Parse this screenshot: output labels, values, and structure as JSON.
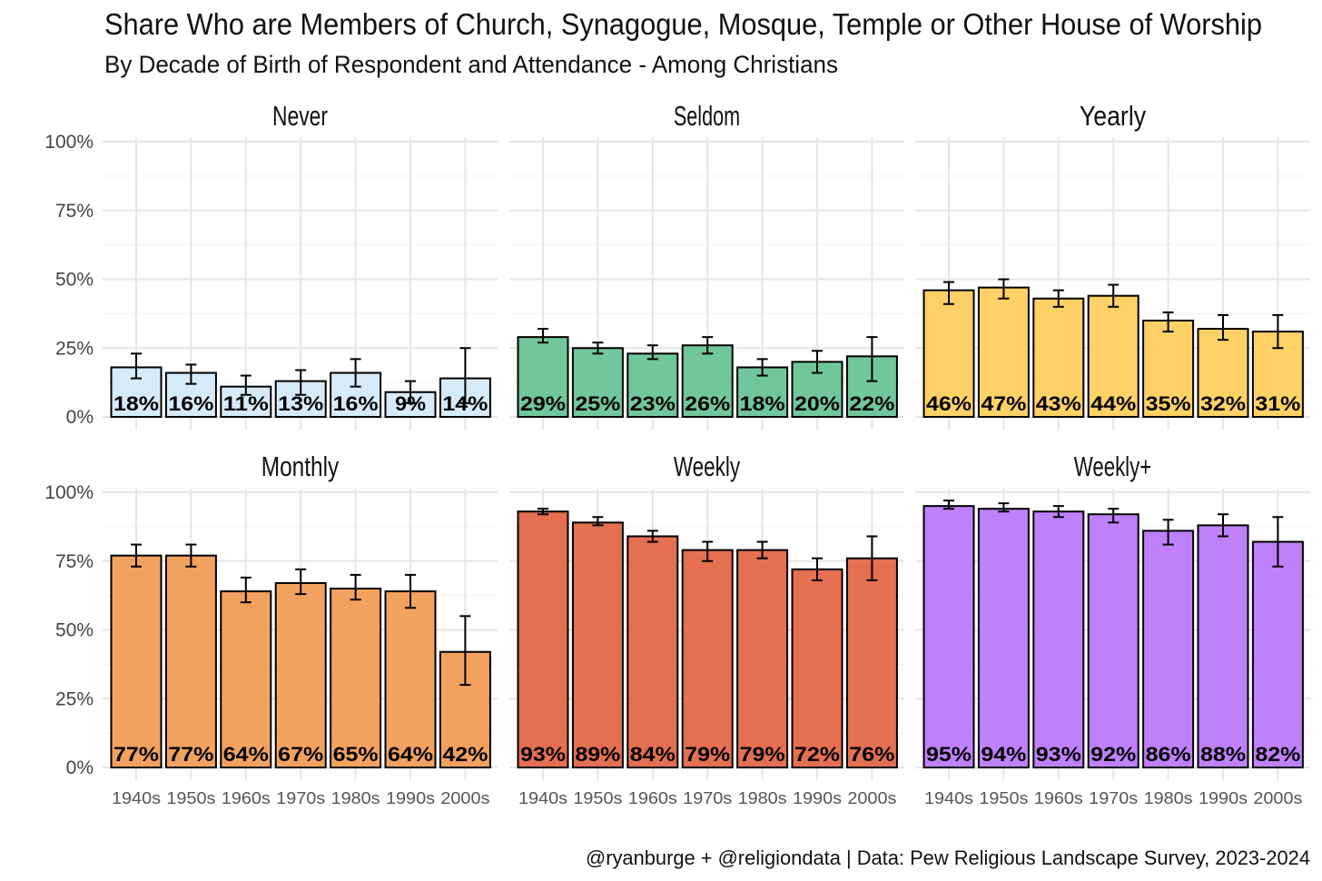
{
  "chart_data": {
    "type": "bar",
    "title": "Share Who are Members of Church, Synagogue, Mosque, Temple or Other House of Worship",
    "subtitle": "By Decade of Birth of Respondent and Attendance - Among Christians",
    "caption": "@ryanburge + @religiondata | Data: Pew Religious Landscape Survey, 2023-2024",
    "xlabel": "",
    "ylabel": "",
    "ylim": [
      0,
      100
    ],
    "y_ticks": [
      "0%",
      "25%",
      "50%",
      "75%",
      "100%"
    ],
    "grid": true,
    "categories": [
      "1940s",
      "1950s",
      "1960s",
      "1970s",
      "1980s",
      "1990s",
      "2000s"
    ],
    "panels": [
      {
        "name": "Never",
        "color": "#d6eaf8",
        "values": [
          18,
          16,
          11,
          13,
          16,
          9,
          14
        ],
        "labels": [
          "18%",
          "16%",
          "11%",
          "13%",
          "16%",
          "9%",
          "14%"
        ],
        "ci_low": [
          14,
          12,
          8,
          8,
          11,
          5,
          5
        ],
        "ci_high": [
          23,
          19,
          15,
          17,
          21,
          13,
          25
        ]
      },
      {
        "name": "Seldom",
        "color": "#72c69b",
        "values": [
          29,
          25,
          23,
          26,
          18,
          20,
          22
        ],
        "labels": [
          "29%",
          "25%",
          "23%",
          "26%",
          "18%",
          "20%",
          "22%"
        ],
        "ci_low": [
          27,
          23,
          21,
          23,
          15,
          16,
          13
        ],
        "ci_high": [
          32,
          27,
          26,
          29,
          21,
          24,
          29
        ]
      },
      {
        "name": "Yearly",
        "color": "#fed166",
        "values": [
          46,
          47,
          43,
          44,
          35,
          32,
          31
        ],
        "labels": [
          "46%",
          "47%",
          "43%",
          "44%",
          "35%",
          "32%",
          "31%"
        ],
        "ci_low": [
          41,
          43,
          40,
          40,
          31,
          28,
          25
        ],
        "ci_high": [
          49,
          50,
          46,
          48,
          38,
          37,
          37
        ]
      },
      {
        "name": "Monthly",
        "color": "#f2a25f",
        "values": [
          77,
          77,
          64,
          67,
          65,
          64,
          42
        ],
        "labels": [
          "77%",
          "77%",
          "64%",
          "67%",
          "65%",
          "64%",
          "42%"
        ],
        "ci_low": [
          73,
          73,
          60,
          63,
          61,
          58,
          30
        ],
        "ci_high": [
          81,
          81,
          69,
          72,
          70,
          70,
          55
        ]
      },
      {
        "name": "Weekly",
        "color": "#e46f51",
        "values": [
          93,
          89,
          84,
          79,
          79,
          72,
          76
        ],
        "labels": [
          "93%",
          "89%",
          "84%",
          "79%",
          "79%",
          "72%",
          "76%"
        ],
        "ci_low": [
          92,
          88,
          82,
          75,
          76,
          68,
          68
        ],
        "ci_high": [
          94,
          91,
          86,
          82,
          82,
          76,
          84
        ]
      },
      {
        "name": "Weekly+",
        "color": "#bf80fb",
        "values": [
          95,
          94,
          93,
          92,
          86,
          88,
          82
        ],
        "labels": [
          "95%",
          "94%",
          "93%",
          "92%",
          "86%",
          "88%",
          "82%"
        ],
        "ci_low": [
          94,
          93,
          91,
          89,
          81,
          84,
          73
        ],
        "ci_high": [
          97,
          96,
          95,
          94,
          90,
          92,
          91
        ]
      }
    ]
  }
}
